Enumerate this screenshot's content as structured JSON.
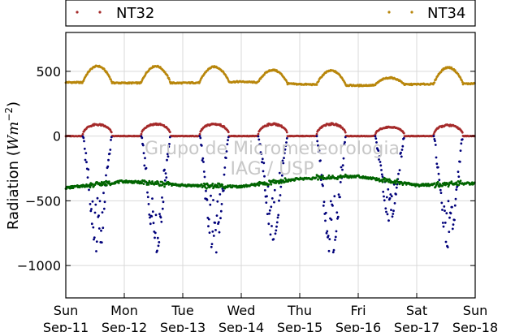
{
  "chart_data": {
    "type": "scatter",
    "ylabel_prefix": "Radiation (",
    "ylabel_math": "Wm",
    "ylabel_exp": "−2",
    "ylabel_suffix": ")",
    "ylim": [
      -1250,
      800
    ],
    "yticks": [
      500,
      0,
      -500,
      -1000
    ],
    "ytick_labels": [
      "500",
      "0",
      "−500",
      "−1000"
    ],
    "x_days": [
      {
        "day": "Sun",
        "date": "Sep-11"
      },
      {
        "day": "Mon",
        "date": "Sep-12"
      },
      {
        "day": "Tue",
        "date": "Sep-13"
      },
      {
        "day": "Wed",
        "date": "Sep-14"
      },
      {
        "day": "Thu",
        "date": "Sep-15"
      },
      {
        "day": "Fri",
        "date": "Sep-16"
      },
      {
        "day": "Sat",
        "date": "Sep-17"
      },
      {
        "day": "Sun",
        "date": "Sep-18"
      }
    ],
    "grid": true,
    "watermark": [
      "Grupo de Micrometeorologia",
      "IAG / USP"
    ],
    "legend": {
      "placement": "top",
      "entries": [
        "NT32",
        "NT34"
      ]
    },
    "series": [
      {
        "name": "NT34",
        "color": "#b8860b",
        "daily_peaks": [
          540,
          540,
          535,
          510,
          505,
          450,
          530
        ],
        "night_level": [
          415,
          410,
          410,
          420,
          400,
          390,
          400,
          405
        ]
      },
      {
        "name": "NT32",
        "color": "#a52a2a",
        "daily_peaks": [
          95,
          100,
          100,
          100,
          100,
          75,
          90
        ],
        "night_level": [
          0,
          0,
          0,
          0,
          0,
          0,
          0,
          0
        ]
      },
      {
        "name": "",
        "color": "#00007a",
        "daily_min": [
          -900,
          -900,
          -930,
          -800,
          -935,
          -660,
          -860
        ]
      },
      {
        "name": "",
        "color": "#006400",
        "daily_level": [
          -400,
          -350,
          -380,
          -390,
          -330,
          -310,
          -380,
          -365
        ]
      }
    ]
  }
}
